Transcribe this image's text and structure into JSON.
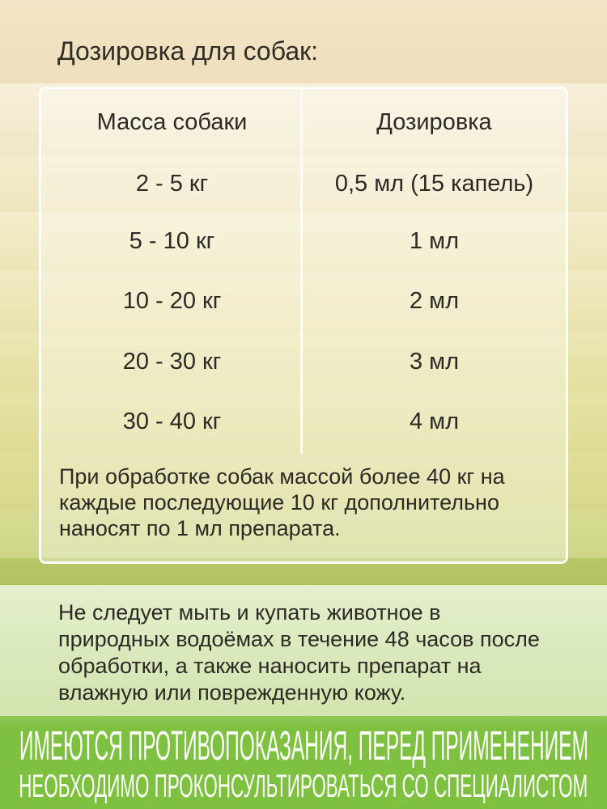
{
  "title": "Дозировка для собак:",
  "table": {
    "headers": {
      "mass": "Масса собаки",
      "dose": "Дозировка"
    },
    "rows": [
      {
        "mass": "2 - 5 кг",
        "dose": "0,5 мл (15 капель)"
      },
      {
        "mass": "5 - 10 кг",
        "dose": "1 мл"
      },
      {
        "mass": "10 - 20 кг",
        "dose": "2 мл"
      },
      {
        "mass": "20 - 30 кг",
        "dose": "3 мл"
      },
      {
        "mass": "30 - 40 кг",
        "dose": "4 мл"
      }
    ],
    "note_lines": [
      "При обработке собак массой более 40 кг на",
      "каждые последующие 10 кг дополнительно",
      "наносят по 1 мл препарата."
    ]
  },
  "warning": {
    "lines": [
      "Не следует мыть и купать животное в",
      "природных водоёмах в течение 48 часов после",
      "обработки, а также наносить препарат на",
      "влажную или поврежденную кожу."
    ]
  },
  "disclaimer": {
    "line1": "ИМЕЮТСЯ ПРОТИВОПОКАЗАНИЯ, ПЕРЕД ПРИМЕНЕНИЕМ",
    "line2": "НЕОБХОДИМО ПРОКОНСУЛЬТИРОВАТЬСЯ СО СПЕЦИАЛИСТОМ"
  },
  "colors": {
    "background_top_beige": "#f2e4c6",
    "background_mid_yellow": "#e7e3a8",
    "olive_stripe": "#b4c663",
    "panel_light_green": "#dcebc0",
    "disclaimer_green": "#7ec140",
    "text_dark": "#2d2a25",
    "table_border_white": "#ffffff"
  }
}
